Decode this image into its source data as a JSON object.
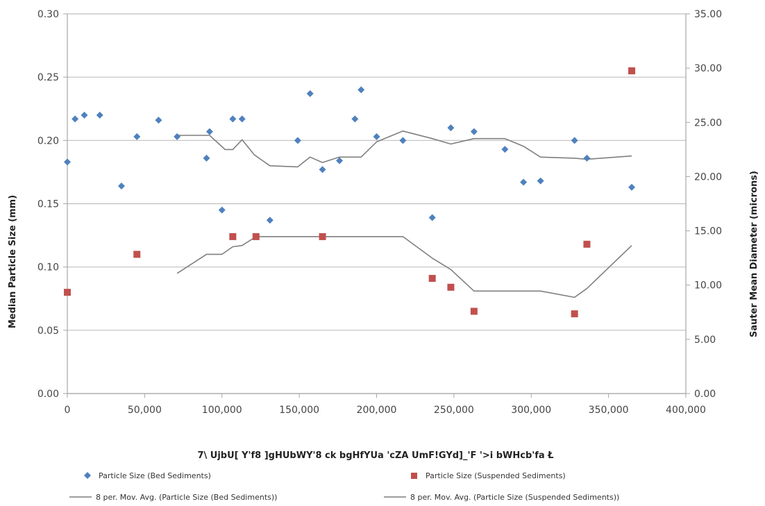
{
  "chart_data": {
    "type": "scatter",
    "xlabel": "7\\ UjbU[ Y'f8 ]gHUbWY'8 ck bgHfYUa 'cZA UmF!GYd]_'F '>i bWHcb'fa Ł",
    "ylabel": "Median Particle Size (mm)",
    "y2label": "Sauter Mean Diameter (microns)",
    "xlim": [
      0,
      400000
    ],
    "ylim": [
      0,
      0.3
    ],
    "y2lim": [
      0,
      35
    ],
    "x_ticks": [
      "0",
      "50,000",
      "100,000",
      "150,000",
      "200,000",
      "250,000",
      "300,000",
      "350,000",
      "400,000"
    ],
    "y_ticks": [
      "0.00",
      "0.05",
      "0.10",
      "0.15",
      "0.20",
      "0.25",
      "0.30"
    ],
    "y2_ticks": [
      "0.00",
      "5.00",
      "10.00",
      "15.00",
      "20.00",
      "25.00",
      "30.00",
      "35.00"
    ],
    "grid": "horizontal",
    "legend_position": "bottom",
    "colors": {
      "bed": "#4f81bd",
      "suspended": "#c0504d",
      "moving_average": "#7f7f7f",
      "grid": "#bfbfbf",
      "axis": "#a6a6a6"
    },
    "series": [
      {
        "name": "Particle Size (Bed Sediments)",
        "kind": "points",
        "marker": "diamond",
        "axis": "left",
        "x": [
          0,
          5000,
          11000,
          21000,
          35000,
          45000,
          59000,
          71000,
          92000,
          90000,
          100000,
          107000,
          113000,
          131000,
          149000,
          157000,
          165000,
          176000,
          186000,
          190000,
          200000,
          217000,
          236000,
          248000,
          263000,
          283000,
          295000,
          306000,
          328000,
          336000,
          365000
        ],
        "y": [
          0.183,
          0.217,
          0.22,
          0.22,
          0.164,
          0.203,
          0.216,
          0.203,
          0.207,
          0.186,
          0.145,
          0.217,
          0.217,
          0.137,
          0.2,
          0.237,
          0.177,
          0.184,
          0.217,
          0.24,
          0.203,
          0.2,
          0.139,
          0.21,
          0.207,
          0.193,
          0.167,
          0.168,
          0.2,
          0.186,
          0.163
        ]
      },
      {
        "name": "Particle Size (Suspended Sediments)",
        "kind": "points",
        "marker": "square",
        "axis": "left",
        "x": [
          0,
          45000,
          107000,
          122000,
          165000,
          236000,
          248000,
          263000,
          328000,
          336000,
          365000
        ],
        "y": [
          0.08,
          0.11,
          0.124,
          0.124,
          0.124,
          0.091,
          0.084,
          0.065,
          0.063,
          0.118,
          0.255
        ]
      },
      {
        "name": "8 per. Mov. Avg. (Particle Size (Bed Sediments))",
        "kind": "line",
        "axis": "right",
        "x": [
          71000,
          92000,
          102000,
          107000,
          113000,
          121000,
          131000,
          149000,
          157000,
          165000,
          176000,
          190000,
          200000,
          217000,
          236000,
          248000,
          263000,
          283000,
          295000,
          306000,
          328000,
          336000,
          365000
        ],
        "y": [
          23.8,
          23.8,
          22.5,
          22.5,
          23.4,
          22.0,
          21.0,
          20.9,
          21.8,
          21.3,
          21.8,
          21.8,
          23.2,
          24.2,
          23.5,
          23.0,
          23.5,
          23.5,
          22.8,
          21.8,
          21.7,
          21.6,
          21.9
        ]
      },
      {
        "name": "8 per. Mov. Avg. (Particle Size (Suspended Sediments))",
        "kind": "line",
        "axis": "left",
        "x": [
          71000,
          90000,
          100000,
          107000,
          113000,
          122000,
          165000,
          217000,
          236000,
          248000,
          263000,
          306000,
          328000,
          336000,
          365000
        ],
        "y": [
          0.095,
          0.11,
          0.11,
          0.116,
          0.117,
          0.124,
          0.124,
          0.124,
          0.107,
          0.098,
          0.081,
          0.081,
          0.076,
          0.083,
          0.117
        ]
      }
    ]
  }
}
